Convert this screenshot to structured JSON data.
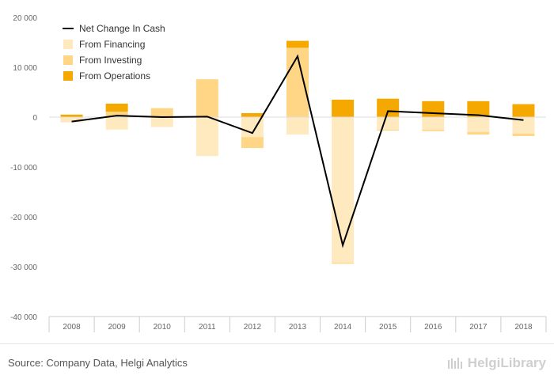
{
  "colors": {
    "financing": "#ffe9bf",
    "investing": "#ffd686",
    "operations": "#f5a800",
    "net": "#000000",
    "axis_text": "#666666",
    "grid": "#dddddd"
  },
  "footer": {
    "source": "Source: Company Data, Helgi Analytics",
    "brand": "HelgiLibrary"
  },
  "chart_data": {
    "type": "bar",
    "stacked": true,
    "categories": [
      "2008",
      "2009",
      "2010",
      "2011",
      "2012",
      "2013",
      "2014",
      "2015",
      "2016",
      "2017",
      "2018"
    ],
    "series": [
      {
        "name": "From Financing",
        "kind": "bar",
        "color": "#ffe9bf",
        "values": [
          -900,
          -2500,
          -2000,
          -7800,
          -4000,
          -3500,
          -29200,
          -2500,
          -2500,
          -3000,
          -3300
        ]
      },
      {
        "name": "From Investing",
        "kind": "bar",
        "color": "#ffd686",
        "values": [
          -100,
          1100,
          1800,
          7600,
          -2200,
          13900,
          -200,
          -200,
          -300,
          -500,
          -500
        ]
      },
      {
        "name": "From Operations",
        "kind": "bar",
        "color": "#f5a800",
        "values": [
          500,
          1600,
          0,
          0,
          800,
          1400,
          3500,
          3700,
          3200,
          3200,
          2600
        ]
      },
      {
        "name": "Net Change In Cash",
        "kind": "line",
        "color": "#000000",
        "values": [
          -900,
          300,
          0,
          100,
          -3200,
          12200,
          -25700,
          1200,
          800,
          400,
          -600
        ]
      }
    ],
    "legend_order": [
      "Net Change In Cash",
      "From Financing",
      "From Investing",
      "From Operations"
    ],
    "ylim": [
      -40000,
      20000
    ],
    "yticks": [
      20000,
      10000,
      0,
      -10000,
      -20000,
      -30000,
      -40000
    ],
    "ytick_labels": [
      "20 000",
      "10 000",
      "0",
      "-10 000",
      "-20 000",
      "-30 000",
      "-40 000"
    ],
    "grid": "horizontal gridline at zero only",
    "legend_position": "top-left"
  }
}
